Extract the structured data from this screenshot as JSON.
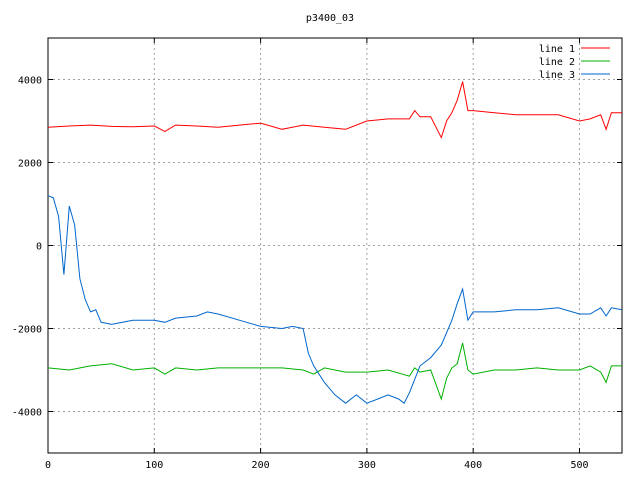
{
  "chart_data": {
    "type": "line",
    "title": "p3400_03",
    "xlim": [
      0,
      540
    ],
    "ylim": [
      -5000,
      5000
    ],
    "x_ticks": [
      0,
      100,
      200,
      300,
      400,
      500
    ],
    "y_ticks": [
      -4000,
      -2000,
      0,
      2000,
      4000
    ],
    "grid": true,
    "legend_position": "top-right",
    "series": [
      {
        "name": "line 1",
        "color": "#ff0000",
        "x": [
          0,
          20,
          40,
          60,
          80,
          100,
          110,
          120,
          140,
          160,
          180,
          200,
          220,
          240,
          260,
          280,
          300,
          320,
          340,
          345,
          350,
          360,
          365,
          370,
          375,
          380,
          385,
          390,
          395,
          400,
          420,
          440,
          460,
          480,
          500,
          510,
          520,
          525,
          530,
          540
        ],
        "y": [
          2850,
          2880,
          2900,
          2870,
          2860,
          2880,
          2750,
          2900,
          2880,
          2850,
          2900,
          2950,
          2800,
          2900,
          2850,
          2800,
          3000,
          3050,
          3050,
          3250,
          3100,
          3100,
          2850,
          2600,
          3000,
          3200,
          3500,
          3950,
          3250,
          3250,
          3200,
          3150,
          3150,
          3150,
          3000,
          3050,
          3150,
          2800,
          3200,
          3200
        ]
      },
      {
        "name": "line 2",
        "color": "#00b000",
        "x": [
          0,
          20,
          40,
          60,
          80,
          100,
          110,
          120,
          140,
          160,
          180,
          200,
          220,
          240,
          250,
          260,
          280,
          300,
          320,
          340,
          345,
          350,
          360,
          365,
          370,
          375,
          380,
          385,
          390,
          395,
          400,
          420,
          440,
          460,
          480,
          500,
          510,
          520,
          525,
          530,
          540
        ],
        "y": [
          -2950,
          -3000,
          -2900,
          -2850,
          -3000,
          -2950,
          -3100,
          -2950,
          -3000,
          -2950,
          -2950,
          -2950,
          -2950,
          -3000,
          -3100,
          -2950,
          -3050,
          -3050,
          -3000,
          -3150,
          -2950,
          -3050,
          -3000,
          -3350,
          -3700,
          -3200,
          -2950,
          -2850,
          -2350,
          -3000,
          -3100,
          -3000,
          -3000,
          -2950,
          -3000,
          -3000,
          -2900,
          -3050,
          -3300,
          -2900,
          -2900
        ]
      },
      {
        "name": "line 3",
        "color": "#0066cc",
        "x": [
          0,
          5,
          10,
          15,
          20,
          25,
          30,
          35,
          40,
          45,
          50,
          60,
          80,
          100,
          110,
          120,
          140,
          150,
          160,
          180,
          200,
          220,
          230,
          240,
          245,
          250,
          260,
          270,
          280,
          290,
          300,
          310,
          320,
          330,
          335,
          340,
          350,
          360,
          370,
          380,
          385,
          390,
          395,
          400,
          420,
          440,
          460,
          480,
          500,
          510,
          520,
          525,
          530,
          540
        ],
        "y": [
          1200,
          1150,
          700,
          -700,
          950,
          500,
          -800,
          -1300,
          -1600,
          -1550,
          -1850,
          -1900,
          -1800,
          -1800,
          -1850,
          -1750,
          -1700,
          -1600,
          -1650,
          -1800,
          -1950,
          -2000,
          -1950,
          -2000,
          -2600,
          -2900,
          -3300,
          -3600,
          -3800,
          -3600,
          -3800,
          -3700,
          -3600,
          -3700,
          -3800,
          -3550,
          -2900,
          -2700,
          -2400,
          -1800,
          -1400,
          -1050,
          -1800,
          -1600,
          -1600,
          -1550,
          -1550,
          -1500,
          -1650,
          -1650,
          -1500,
          -1700,
          -1500,
          -1550
        ]
      }
    ]
  }
}
